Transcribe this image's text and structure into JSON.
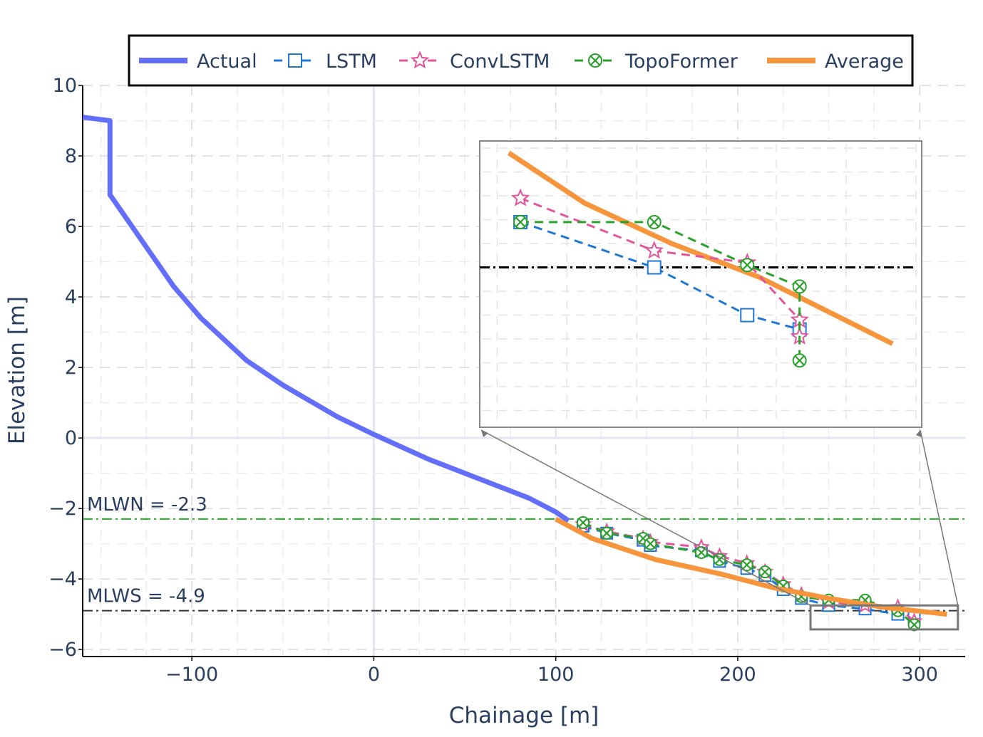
{
  "chart_data": {
    "type": "line",
    "xlabel": "Chainage [m]",
    "ylabel": "Elevation [m]",
    "xlim": [
      -160,
      325
    ],
    "ylim": [
      -6.2,
      10
    ],
    "xticks": [
      -100,
      0,
      100,
      200,
      300
    ],
    "xtick_labels": [
      "−100",
      "0",
      "100",
      "200",
      "300"
    ],
    "yticks": [
      -6,
      -4,
      -2,
      0,
      2,
      4,
      6,
      8,
      10
    ],
    "ytick_labels": [
      "−6",
      "−4",
      "−2",
      "0",
      "2",
      "4",
      "6",
      "8",
      "10"
    ],
    "grid": true,
    "legend_position": "top",
    "reference_lines": [
      {
        "name": "MLWN",
        "label": "MLWN = -2.3",
        "y": -2.3,
        "color": "#2ca02c",
        "style": "dashdot"
      },
      {
        "name": "MLWS",
        "label": "MLWS = -4.9",
        "y": -4.9,
        "color": "#333333",
        "style": "dashdot"
      }
    ],
    "series": [
      {
        "name": "Actual",
        "color": "#636efa",
        "style": "solid",
        "marker": "none",
        "x": [
          -160,
          -145,
          -145,
          -110,
          -95,
          -70,
          -50,
          -20,
          0,
          30,
          60,
          85,
          100,
          107
        ],
        "y": [
          9.1,
          9.0,
          6.9,
          4.3,
          3.4,
          2.2,
          1.5,
          0.6,
          0.1,
          -0.6,
          -1.2,
          -1.7,
          -2.1,
          -2.35
        ]
      },
      {
        "name": "LSTM",
        "color": "#1f77d4",
        "style": "dashed",
        "marker": "square",
        "x": [
          115,
          128,
          148,
          152,
          180,
          190,
          205,
          215,
          225,
          235,
          250,
          270,
          288,
          297
        ],
        "y": [
          -2.5,
          -2.7,
          -2.9,
          -3.05,
          -3.2,
          -3.5,
          -3.7,
          -3.9,
          -4.3,
          -4.55,
          -4.75,
          -4.85,
          -5.0,
          -5.1
        ]
      },
      {
        "name": "ConvLSTM",
        "color": "#e0559b",
        "style": "dashed",
        "marker": "star",
        "x": [
          115,
          128,
          148,
          152,
          180,
          190,
          205,
          215,
          225,
          235,
          250,
          270,
          288,
          297
        ],
        "y": [
          -2.45,
          -2.65,
          -2.85,
          -2.95,
          -3.1,
          -3.35,
          -3.55,
          -3.8,
          -4.15,
          -4.45,
          -4.65,
          -4.75,
          -4.8,
          -5.2
        ]
      },
      {
        "name": "TopoFormer",
        "color": "#2ca02c",
        "style": "dashed",
        "marker": "x",
        "x": [
          115,
          128,
          148,
          152,
          180,
          190,
          205,
          215,
          225,
          235,
          250,
          270,
          288,
          297
        ],
        "y": [
          -2.4,
          -2.7,
          -2.85,
          -3.0,
          -3.25,
          -3.45,
          -3.6,
          -3.8,
          -4.2,
          -4.5,
          -4.6,
          -4.6,
          -4.9,
          -5.3
        ]
      },
      {
        "name": "Average",
        "color": "#f7953c",
        "style": "solid",
        "marker": "none",
        "x": [
          100,
          120,
          155,
          190,
          220,
          250,
          280,
          315
        ],
        "y": [
          -2.3,
          -2.85,
          -3.45,
          -3.85,
          -4.25,
          -4.55,
          -4.8,
          -5.0
        ]
      }
    ],
    "inset": {
      "xlim": [
        242,
        318
      ],
      "ylim": [
        -5.57,
        -4.37
      ],
      "source_box": {
        "x": [
          240,
          321
        ],
        "y": [
          -5.43,
          -4.75
        ]
      },
      "reference_line_y": -4.9,
      "series": [
        {
          "name": "Average",
          "x": [
            247,
            260,
            275,
            290,
            313
          ],
          "y": [
            -4.42,
            -4.63,
            -4.8,
            -4.94,
            -5.22
          ]
        },
        {
          "name": "LSTM",
          "x": [
            249,
            272,
            288,
            297
          ],
          "y": [
            -4.71,
            -4.9,
            -5.1,
            -5.16
          ]
        },
        {
          "name": "ConvLSTM",
          "x": [
            249,
            272,
            288,
            297,
            297
          ],
          "y": [
            -4.61,
            -4.83,
            -4.88,
            -5.12,
            -5.19
          ]
        },
        {
          "name": "TopoFormer",
          "x": [
            249,
            272,
            288,
            297,
            297
          ],
          "y": [
            -4.71,
            -4.71,
            -4.89,
            -4.98,
            -5.29
          ]
        }
      ]
    }
  }
}
